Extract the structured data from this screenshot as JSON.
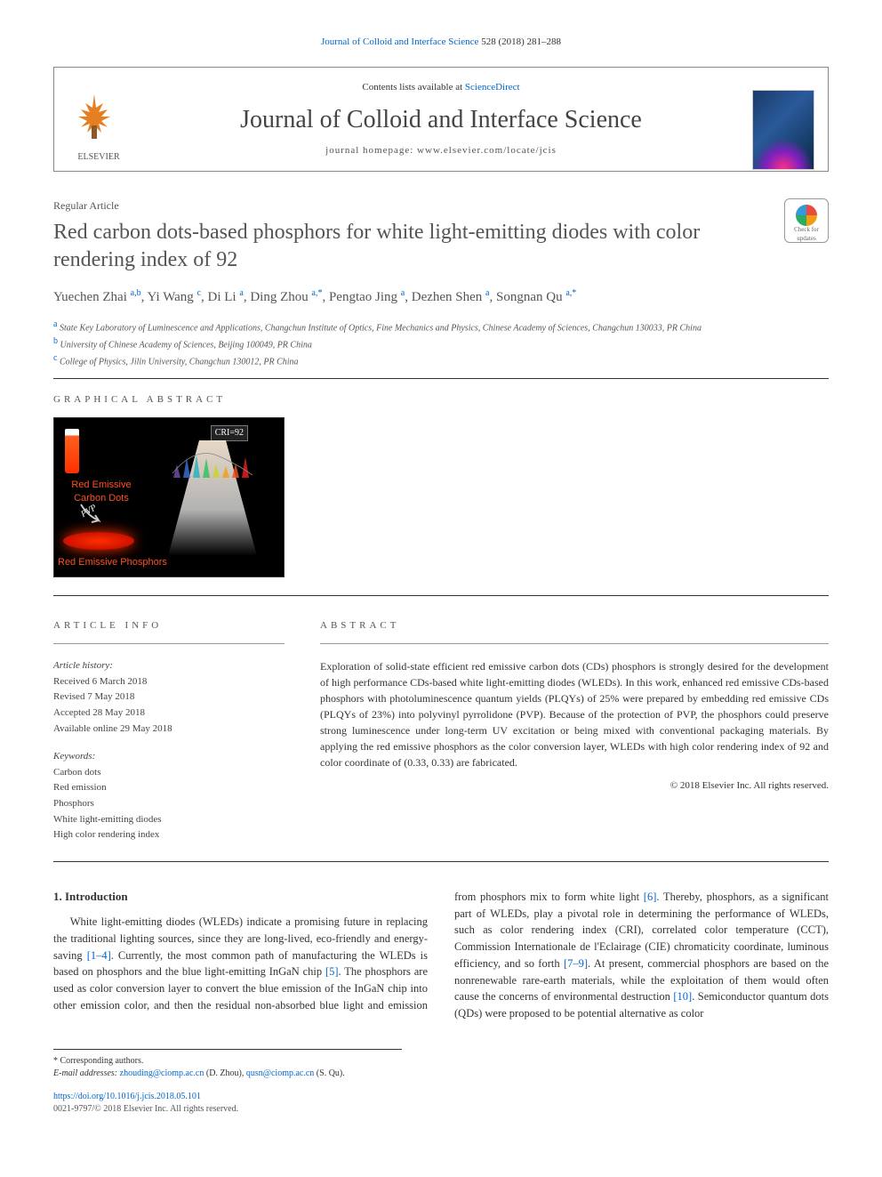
{
  "citation": {
    "journal_link": "Journal of Colloid and Interface Science",
    "vol_pages": " 528 (2018) 281–288"
  },
  "header": {
    "contents_prefix": "Contents lists available at ",
    "contents_link": "ScienceDirect",
    "journal_name": "Journal of Colloid and Interface Science",
    "homepage": "journal homepage: www.elsevier.com/locate/jcis",
    "publisher_name": "ELSEVIER"
  },
  "article": {
    "type": "Regular Article",
    "title": "Red carbon dots-based phosphors for white light-emitting diodes with color rendering index of 92",
    "check_updates": "Check for updates",
    "authors_html": "Yuechen Zhai <sup>a,b</sup>, Yi Wang <sup>c</sup>, Di Li <sup>a</sup>, Ding Zhou <sup>a,*</sup>, Pengtao Jing <sup>a</sup>, Dezhen Shen <sup>a</sup>, Songnan Qu <sup>a,*</sup>",
    "affiliations": [
      {
        "idx": "a",
        "text": "State Key Laboratory of Luminescence and Applications, Changchun Institute of Optics, Fine Mechanics and Physics, Chinese Academy of Sciences, Changchun 130033, PR China"
      },
      {
        "idx": "b",
        "text": "University of Chinese Academy of Sciences, Beijing 100049, PR China"
      },
      {
        "idx": "c",
        "text": "College of Physics, Jilin University, Changchun 130012, PR China"
      }
    ]
  },
  "graphical_abstract": {
    "section_label": "GRAPHICAL ABSTRACT",
    "label1": "Red Emissive Carbon Dots",
    "pvp": "PVP",
    "label2": "Red Emissive Phosphors",
    "cri": "CRI=92",
    "spectrum_colors": [
      "#6a4da0",
      "#3a6ad0",
      "#2ab0c0",
      "#3ac060",
      "#d0d030",
      "#f0a020",
      "#f05020",
      "#e02020"
    ]
  },
  "article_info": {
    "section_label": "ARTICLE INFO",
    "history_label": "Article history:",
    "history": [
      "Received 6 March 2018",
      "Revised 7 May 2018",
      "Accepted 28 May 2018",
      "Available online 29 May 2018"
    ],
    "keywords_label": "Keywords:",
    "keywords": [
      "Carbon dots",
      "Red emission",
      "Phosphors",
      "White light-emitting diodes",
      "High color rendering index"
    ]
  },
  "abstract": {
    "section_label": "ABSTRACT",
    "text": "Exploration of solid-state efficient red emissive carbon dots (CDs) phosphors is strongly desired for the development of high performance CDs-based white light-emitting diodes (WLEDs). In this work, enhanced red emissive CDs-based phosphors with photoluminescence quantum yields (PLQYs) of 25% were prepared by embedding red emissive CDs (PLQYs of 23%) into polyvinyl pyrrolidone (PVP). Because of the protection of PVP, the phosphors could preserve strong luminescence under long-term UV excitation or being mixed with conventional packaging materials. By applying the red emissive phosphors as the color conversion layer, WLEDs with high color rendering index of 92 and color coordinate of (0.33, 0.33) are fabricated.",
    "copyright": "© 2018 Elsevier Inc. All rights reserved."
  },
  "body": {
    "section1_title": "1. Introduction",
    "para1_pre": "White light-emitting diodes (WLEDs) indicate a promising future in replacing the traditional lighting sources, since they are long-lived, eco-friendly and energy-saving ",
    "ref1": "[1–4]",
    "para1_mid1": ". Currently, the most common path of manufacturing the WLEDs is based on phosphors and the blue light-emitting InGaN chip ",
    "ref2": "[5]",
    "para1_mid2": ". The phosphors are used as color conversion layer to convert the blue emission of the InGaN chip into other emission color, and then the residual non-absorbed blue light and emission from phosphors mix to form white light ",
    "ref3": "[6]",
    "para1_mid3": ". Thereby, phosphors, as a significant part of WLEDs, play a pivotal role in determining the performance of WLEDs, such as color rendering index (CRI), correlated color temperature (CCT), Commission Internationale de l'Eclairage (CIE) chromaticity coordinate, luminous efficiency, and so forth ",
    "ref4": "[7–9]",
    "para1_mid4": ". At present, commercial phosphors are based on the nonrenewable rare-earth materials, while the exploitation of them would often cause the concerns of environmental destruction ",
    "ref5": "[10]",
    "para1_end": ". Semiconductor quantum dots (QDs) were proposed to be potential alternative as color"
  },
  "footnotes": {
    "corr_label": "* Corresponding authors.",
    "email_label": "E-mail addresses: ",
    "email1": "zhouding@ciomp.ac.cn",
    "email1_who": " (D. Zhou), ",
    "email2": "qusn@ciomp.ac.cn",
    "email2_who": " (S. Qu)."
  },
  "footer": {
    "doi": "https://doi.org/10.1016/j.jcis.2018.05.101",
    "issn": "0021-9797/© 2018 Elsevier Inc. All rights reserved."
  },
  "colors": {
    "link": "#0066cc",
    "text": "#333333",
    "muted": "#555555",
    "red_emissive": "#ff5020"
  }
}
